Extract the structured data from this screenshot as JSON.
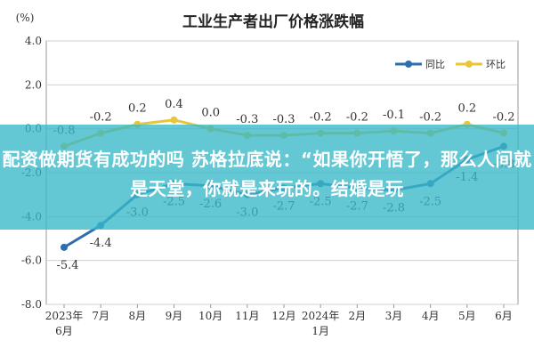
{
  "chart_data": {
    "type": "line",
    "title": "工业生产者出厂价格涨跌幅",
    "ylabel": "(%)",
    "ylim": [
      -8.0,
      4.0
    ],
    "yticks": [
      "4.0",
      "2.0",
      "0.0",
      "-2.0",
      "-4.0",
      "-6.0",
      "-8.0"
    ],
    "categories": [
      "2023年6月",
      "7月",
      "8月",
      "9月",
      "10月",
      "11月",
      "12月",
      "2024年1月",
      "2月",
      "3月",
      "4月",
      "5月",
      "6月"
    ],
    "x_tick_lines": [
      [
        "2023年",
        "6月"
      ],
      [
        "7月"
      ],
      [
        "8月"
      ],
      [
        "9月"
      ],
      [
        "10月"
      ],
      [
        "11月"
      ],
      [
        "12月"
      ],
      [
        "2024年",
        "1月"
      ],
      [
        "2月"
      ],
      [
        "3月"
      ],
      [
        "4月"
      ],
      [
        "5月"
      ],
      [
        "6月"
      ]
    ],
    "series": [
      {
        "name": "同比",
        "color": "#2e6db0",
        "values": [
          -5.4,
          -4.4,
          -3.0,
          -2.5,
          -2.6,
          -3.0,
          -2.7,
          -2.5,
          -2.7,
          -2.8,
          -2.5,
          -1.4,
          -0.8
        ],
        "labels": [
          "-5.4",
          "-4.4",
          "-3.0",
          "-2.5",
          "-2.6",
          "-3.0",
          "-2.7",
          "-2.5",
          "-2.7",
          "-2.8",
          "-2.5",
          "-1.4",
          "-0.8"
        ]
      },
      {
        "name": "环比",
        "color": "#e8c53a",
        "values": [
          -0.8,
          -0.2,
          0.2,
          0.4,
          0.0,
          -0.3,
          -0.3,
          -0.2,
          -0.2,
          -0.1,
          -0.2,
          0.2,
          -0.2
        ],
        "labels": [
          "-0.8",
          "-0.2",
          "0.2",
          "0.4",
          "0.0",
          "-0.3",
          "-0.3",
          "-0.2",
          "-0.2",
          "-0.1",
          "-0.2",
          "0.2",
          "-0.2"
        ]
      }
    ],
    "legend_position": "top-right",
    "grid": true
  },
  "overlay": {
    "text": "配资做期货有成功的吗 苏格拉底说：“如果你开悟了，那么人间就是天堂，你就是来玩的。结婚是玩"
  }
}
